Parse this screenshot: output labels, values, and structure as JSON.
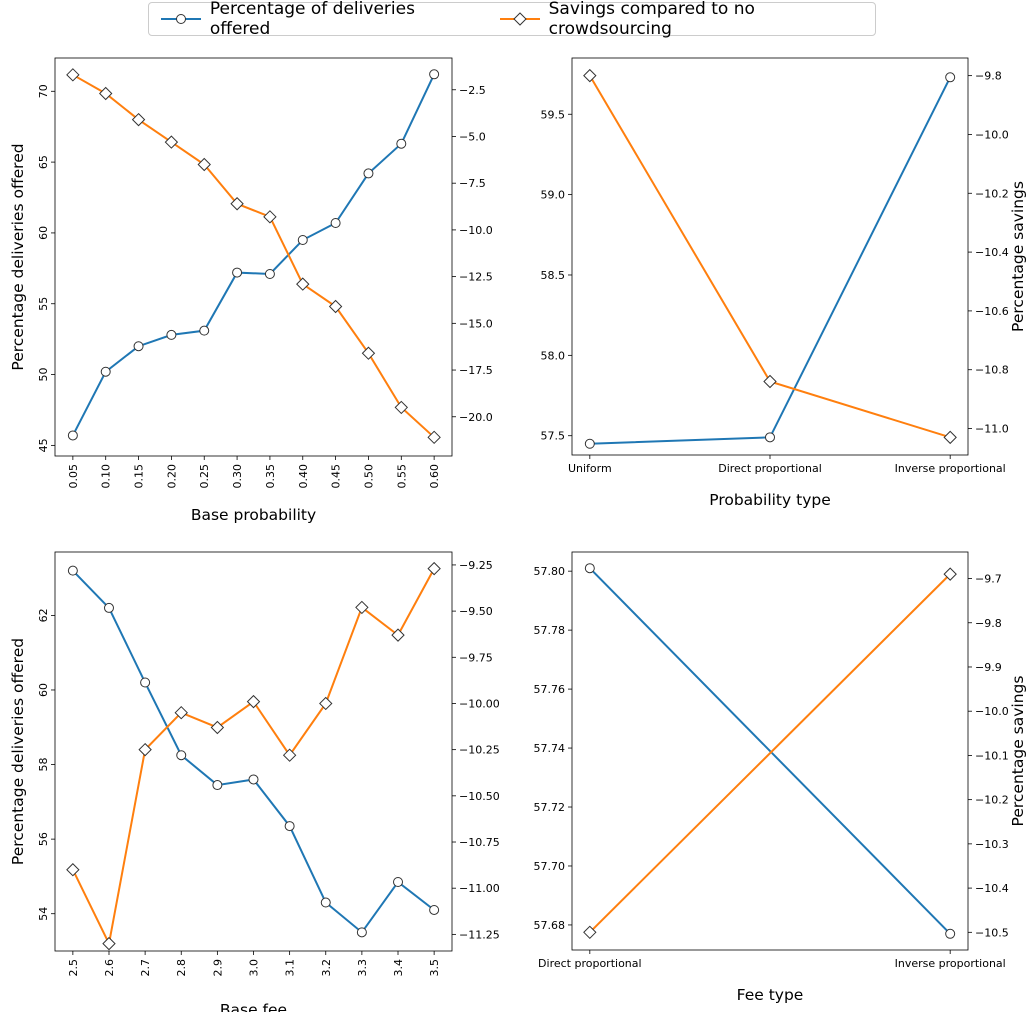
{
  "legend": {
    "items": [
      {
        "label": "Percentage of deliveries offered",
        "color": "#1f77b4",
        "marker": "circle"
      },
      {
        "label": "Savings compared to no crowdsourcing",
        "color": "#ff7f0e",
        "marker": "diamond"
      }
    ]
  },
  "chart_data": [
    {
      "type": "line",
      "xlabel": "Base probability",
      "ylabel": "Percentage deliveries offered",
      "ylabel_right": "",
      "categories": [
        "0.05",
        "0.10",
        "0.15",
        "0.20",
        "0.25",
        "0.30",
        "0.35",
        "0.40",
        "0.45",
        "0.50",
        "0.55",
        "0.60"
      ],
      "x_tick_rotation": "vertical",
      "left_ticks": [
        "45",
        "50",
        "55",
        "60",
        "65",
        "70"
      ],
      "right_ticks": [
        "−20.0",
        "−17.5",
        "−15.0",
        "−12.5",
        "−10.0",
        "−7.5",
        "−5.0",
        "−2.5"
      ],
      "ylim": [
        44.25,
        72.35
      ],
      "ylim_right": [
        -22.1,
        -0.8
      ],
      "series": [
        {
          "name": "Percentage of deliveries offered",
          "axis": "left",
          "color": "#1f77b4",
          "marker": "circle",
          "values": [
            45.7,
            50.2,
            52.0,
            52.8,
            53.1,
            57.2,
            57.1,
            59.5,
            60.7,
            64.2,
            66.3,
            71.2
          ]
        },
        {
          "name": "Savings compared to no crowdsourcing",
          "axis": "right",
          "color": "#ff7f0e",
          "marker": "diamond",
          "values": [
            -1.7,
            -2.7,
            -4.1,
            -5.3,
            -6.5,
            -8.6,
            -9.3,
            -12.9,
            -14.1,
            -16.6,
            -19.5,
            -21.1
          ]
        }
      ]
    },
    {
      "type": "line",
      "xlabel": "Probability type",
      "ylabel": "",
      "ylabel_right": "Percentage savings",
      "categories": [
        "Uniform",
        "Direct proportional",
        "Inverse proportional"
      ],
      "x_tick_rotation": "horizontal",
      "left_ticks": [
        "57.5",
        "58.0",
        "58.5",
        "59.0",
        "59.5"
      ],
      "right_ticks": [
        "−11.0",
        "−10.8",
        "−10.6",
        "−10.4",
        "−10.2",
        "−10.0",
        "−9.8"
      ],
      "ylim": [
        57.38,
        59.85
      ],
      "ylim_right": [
        -11.09,
        -9.74
      ],
      "series": [
        {
          "name": "Percentage of deliveries offered",
          "axis": "left",
          "color": "#1f77b4",
          "marker": "circle",
          "values": [
            57.45,
            57.49,
            59.73
          ]
        },
        {
          "name": "Savings compared to no crowdsourcing",
          "axis": "right",
          "color": "#ff7f0e",
          "marker": "diamond",
          "values": [
            -9.8,
            -10.84,
            -11.03
          ]
        }
      ]
    },
    {
      "type": "line",
      "xlabel": "Base fee",
      "ylabel": "Percentage deliveries offered",
      "ylabel_right": "",
      "categories": [
        "2.5",
        "2.6",
        "2.7",
        "2.8",
        "2.9",
        "3.0",
        "3.1",
        "3.2",
        "3.3",
        "3.4",
        "3.5"
      ],
      "x_tick_rotation": "vertical",
      "left_ticks": [
        "54",
        "56",
        "58",
        "60",
        "62"
      ],
      "right_ticks": [
        "−11.25",
        "−11.00",
        "−10.75",
        "−10.50",
        "−10.25",
        "−10.00",
        "−9.75",
        "−9.50",
        "−9.25"
      ],
      "ylim": [
        53.0,
        63.7
      ],
      "ylim_right": [
        -11.34,
        -9.18
      ],
      "series": [
        {
          "name": "Percentage of deliveries offered",
          "axis": "left",
          "color": "#1f77b4",
          "marker": "circle",
          "values": [
            63.2,
            62.2,
            60.2,
            58.25,
            57.45,
            57.6,
            56.35,
            54.3,
            53.5,
            54.85,
            54.1
          ]
        },
        {
          "name": "Savings compared to no crowdsourcing",
          "axis": "right",
          "color": "#ff7f0e",
          "marker": "diamond",
          "values": [
            -10.9,
            -11.3,
            -10.25,
            -10.05,
            -10.13,
            -9.99,
            -10.28,
            -10.0,
            -9.48,
            -9.63,
            -9.27
          ]
        }
      ]
    },
    {
      "type": "line",
      "xlabel": "Fee type",
      "ylabel": "",
      "ylabel_right": "Percentage savings",
      "categories": [
        "Direct proportional",
        "Inverse proportional"
      ],
      "x_tick_rotation": "horizontal",
      "left_ticks": [
        "57.68",
        "57.70",
        "57.72",
        "57.74",
        "57.76",
        "57.78",
        "57.80"
      ],
      "right_ticks": [
        "−10.5",
        "−10.4",
        "−10.3",
        "−10.2",
        "−10.1",
        "−10.0",
        "−9.9",
        "−9.8",
        "−9.7"
      ],
      "ylim": [
        57.6715,
        57.8065
      ],
      "ylim_right": [
        -10.54,
        -9.64
      ],
      "series": [
        {
          "name": "Percentage of deliveries offered",
          "axis": "left",
          "color": "#1f77b4",
          "marker": "circle",
          "values": [
            57.801,
            57.677
          ]
        },
        {
          "name": "Savings compared to no crowdsourcing",
          "axis": "right",
          "color": "#ff7f0e",
          "marker": "diamond",
          "values": [
            -10.5,
            -9.69
          ]
        }
      ]
    }
  ]
}
